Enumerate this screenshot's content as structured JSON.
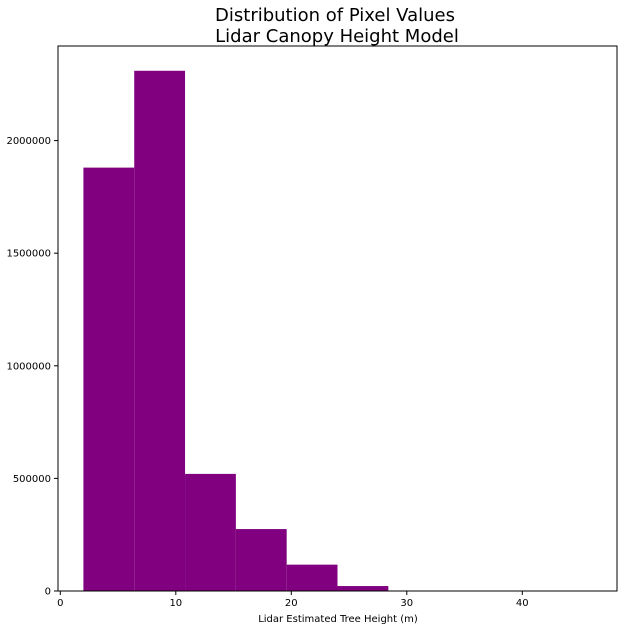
{
  "chart_data": {
    "type": "bar",
    "title_lines": [
      "Distribution of Pixel Values",
      "Lidar Canopy Height Model"
    ],
    "xlabel": "Lidar Estimated Tree Height (m)",
    "ylabel": "",
    "bar_color": "#800080",
    "xlim": [
      -0.2,
      48.2
    ],
    "ylim": [
      0,
      2420000
    ],
    "x_ticks": [
      0,
      10,
      20,
      30,
      40
    ],
    "y_ticks": [
      0,
      500000,
      1000000,
      1500000,
      2000000
    ],
    "bins": [
      {
        "x0": 2.0,
        "x1": 6.4,
        "value": 1880000
      },
      {
        "x0": 6.4,
        "x1": 10.8,
        "value": 2310000
      },
      {
        "x0": 10.8,
        "x1": 15.2,
        "value": 520000
      },
      {
        "x0": 15.2,
        "x1": 19.6,
        "value": 275000
      },
      {
        "x0": 19.6,
        "x1": 24.0,
        "value": 117000
      },
      {
        "x0": 24.0,
        "x1": 28.4,
        "value": 22000
      },
      {
        "x0": 28.4,
        "x1": 32.8,
        "value": 1500
      },
      {
        "x0": 32.8,
        "x1": 37.2,
        "value": 300
      },
      {
        "x0": 37.2,
        "x1": 41.6,
        "value": 100
      },
      {
        "x0": 41.6,
        "x1": 46.0,
        "value": 50
      }
    ],
    "grid": false,
    "legend": "none"
  }
}
